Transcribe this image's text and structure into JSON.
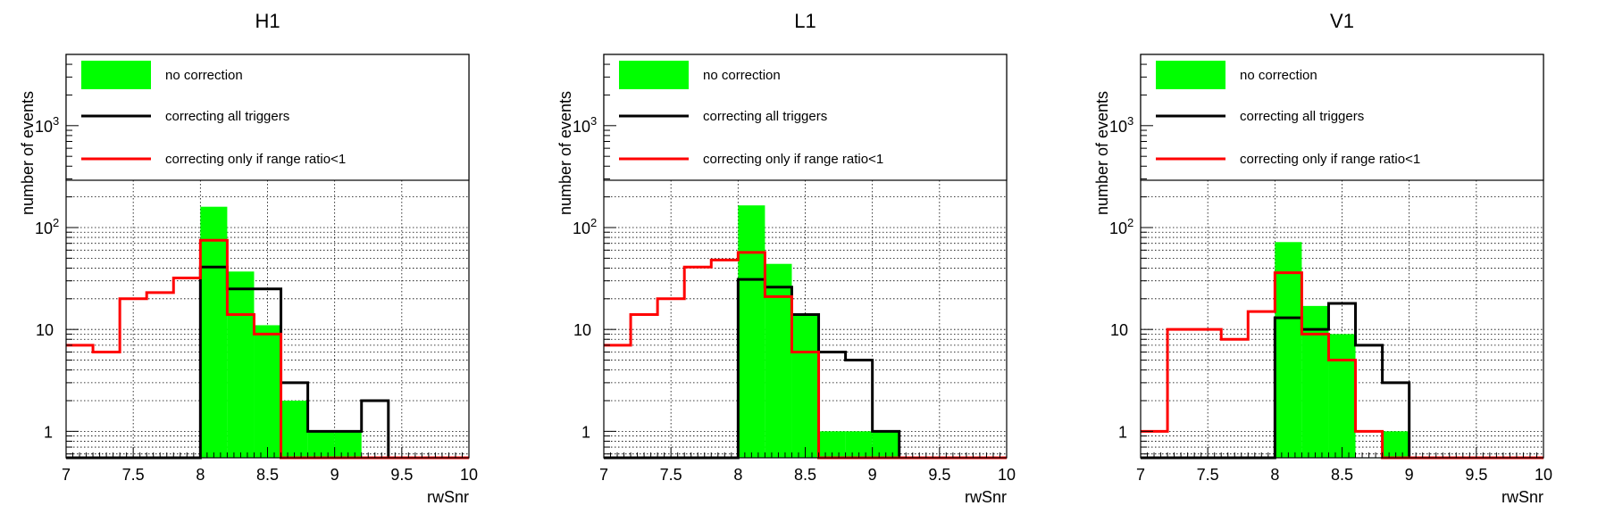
{
  "chart_data": [
    {
      "type": "histogram",
      "title": "H1",
      "xlabel": "rwSnr",
      "ylabel": "number of events",
      "xlim": [
        7,
        10
      ],
      "ylim": [
        0.55,
        5000
      ],
      "yscale": "log",
      "grid": true,
      "legend_position": "top",
      "x_ticks": [
        "7",
        "7.5",
        "8",
        "8.5",
        "9",
        "9.5",
        "10"
      ],
      "y_ticks": [
        "1",
        "10",
        "10^2",
        "10^3"
      ],
      "bin_edges": [
        7,
        7.2,
        7.4,
        7.6,
        7.8,
        8,
        8.2,
        8.4,
        8.6,
        8.8,
        9,
        9.2,
        9.4,
        9.6,
        9.8,
        10
      ],
      "series": [
        {
          "name": "no correction",
          "style": "filled",
          "color": "#00ff00",
          "values": [
            0,
            0,
            0,
            0,
            0,
            160,
            37,
            11,
            2,
            1,
            1,
            0,
            0,
            0,
            0
          ]
        },
        {
          "name": "correcting all triggers",
          "style": "line",
          "color": "#000000",
          "values": [
            0,
            0,
            0,
            0,
            0,
            41,
            25,
            25,
            3,
            1,
            1,
            2,
            0,
            0,
            0
          ]
        },
        {
          "name": "correcting only if range ratio<1",
          "style": "line",
          "color": "#ff0000",
          "values": [
            7,
            6,
            20,
            23,
            32,
            75,
            14,
            9,
            0,
            0,
            0,
            0,
            0,
            0,
            0
          ]
        }
      ]
    },
    {
      "type": "histogram",
      "title": "L1",
      "xlabel": "rwSnr",
      "ylabel": "number of events",
      "xlim": [
        7,
        10
      ],
      "ylim": [
        0.55,
        5000
      ],
      "yscale": "log",
      "grid": true,
      "legend_position": "top",
      "x_ticks": [
        "7",
        "7.5",
        "8",
        "8.5",
        "9",
        "9.5",
        "10"
      ],
      "y_ticks": [
        "1",
        "10",
        "10^2",
        "10^3"
      ],
      "bin_edges": [
        7,
        7.2,
        7.4,
        7.6,
        7.8,
        8,
        8.2,
        8.4,
        8.6,
        8.8,
        9,
        9.2,
        9.4,
        9.6,
        9.8,
        10
      ],
      "series": [
        {
          "name": "no correction",
          "style": "filled",
          "color": "#00ff00",
          "values": [
            0,
            0,
            0,
            0,
            0,
            165,
            44,
            14,
            1,
            1,
            1,
            0,
            0,
            0,
            0
          ]
        },
        {
          "name": "correcting all triggers",
          "style": "line",
          "color": "#000000",
          "values": [
            0,
            0,
            0,
            0,
            0,
            31,
            26,
            14,
            6,
            5,
            1,
            0,
            0,
            0,
            0
          ]
        },
        {
          "name": "correcting only if range ratio<1",
          "style": "line",
          "color": "#ff0000",
          "values": [
            7,
            14,
            20,
            41,
            48,
            57,
            21,
            6,
            0,
            0,
            0,
            0,
            0,
            0,
            0
          ]
        }
      ]
    },
    {
      "type": "histogram",
      "title": "V1",
      "xlabel": "rwSnr",
      "ylabel": "number of events",
      "xlim": [
        7,
        10
      ],
      "ylim": [
        0.55,
        5000
      ],
      "yscale": "log",
      "grid": true,
      "legend_position": "top",
      "x_ticks": [
        "7",
        "7.5",
        "8",
        "8.5",
        "9",
        "9.5",
        "10"
      ],
      "y_ticks": [
        "1",
        "10",
        "10^2",
        "10^3"
      ],
      "bin_edges": [
        7,
        7.2,
        7.4,
        7.6,
        7.8,
        8,
        8.2,
        8.4,
        8.6,
        8.8,
        9,
        9.2,
        9.4,
        9.6,
        9.8,
        10
      ],
      "series": [
        {
          "name": "no correction",
          "style": "filled",
          "color": "#00ff00",
          "values": [
            0,
            0,
            0,
            0,
            0,
            72,
            17,
            9,
            0,
            1,
            0,
            0,
            0,
            0,
            0
          ]
        },
        {
          "name": "correcting all triggers",
          "style": "line",
          "color": "#000000",
          "values": [
            0,
            0,
            0,
            0,
            0,
            13,
            10,
            18,
            7,
            3,
            0,
            0,
            0,
            0,
            0
          ]
        },
        {
          "name": "correcting only if range ratio<1",
          "style": "line",
          "color": "#ff0000",
          "values": [
            1,
            10,
            10,
            8,
            15,
            36,
            9,
            5,
            1,
            0,
            0,
            0,
            0,
            0,
            0
          ]
        }
      ]
    }
  ]
}
